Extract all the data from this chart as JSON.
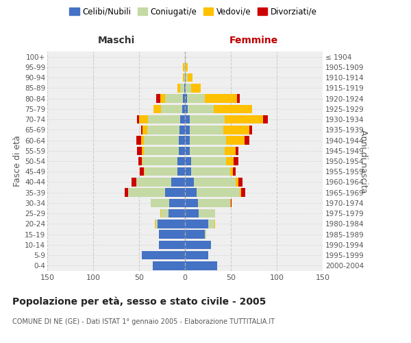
{
  "age_groups": [
    "100+",
    "95-99",
    "90-94",
    "85-89",
    "80-84",
    "75-79",
    "70-74",
    "65-69",
    "60-64",
    "55-59",
    "50-54",
    "45-49",
    "40-44",
    "35-39",
    "30-34",
    "25-29",
    "20-24",
    "15-19",
    "10-14",
    "5-9",
    "0-4"
  ],
  "birth_years": [
    "≤ 1904",
    "1905-1909",
    "1910-1914",
    "1915-1919",
    "1920-1924",
    "1925-1929",
    "1930-1934",
    "1935-1939",
    "1940-1944",
    "1945-1949",
    "1950-1954",
    "1955-1959",
    "1960-1964",
    "1965-1969",
    "1970-1974",
    "1975-1979",
    "1980-1984",
    "1985-1989",
    "1990-1994",
    "1995-1999",
    "2000-2004"
  ],
  "colors": {
    "celibi": "#4472c4",
    "coniugati": "#c5d9a4",
    "vedovi": "#ffc000",
    "divorziati": "#cc0000"
  },
  "males": {
    "celibi": [
      0,
      0,
      0,
      1,
      2,
      3,
      5,
      6,
      7,
      7,
      8,
      8,
      15,
      22,
      17,
      18,
      30,
      28,
      28,
      47,
      35
    ],
    "coniugati": [
      0,
      1,
      1,
      4,
      20,
      23,
      35,
      35,
      38,
      38,
      38,
      36,
      38,
      40,
      20,
      8,
      2,
      0,
      0,
      0,
      0
    ],
    "vedovi": [
      0,
      1,
      1,
      3,
      5,
      8,
      10,
      5,
      3,
      2,
      1,
      1,
      0,
      0,
      0,
      1,
      1,
      0,
      0,
      0,
      0
    ],
    "divorziati": [
      0,
      0,
      0,
      0,
      4,
      0,
      2,
      2,
      5,
      5,
      4,
      4,
      5,
      4,
      0,
      0,
      0,
      0,
      0,
      0,
      0
    ]
  },
  "females": {
    "celibi": [
      0,
      0,
      1,
      1,
      2,
      3,
      5,
      5,
      5,
      5,
      7,
      7,
      10,
      13,
      14,
      15,
      25,
      22,
      28,
      25,
      35
    ],
    "coniugati": [
      0,
      1,
      2,
      6,
      20,
      28,
      38,
      37,
      40,
      38,
      38,
      42,
      45,
      47,
      35,
      18,
      7,
      1,
      0,
      0,
      0
    ],
    "vedovi": [
      0,
      2,
      5,
      10,
      35,
      42,
      42,
      28,
      20,
      12,
      8,
      3,
      3,
      1,
      1,
      0,
      1,
      0,
      0,
      0,
      0
    ],
    "divorziati": [
      0,
      0,
      0,
      0,
      3,
      0,
      5,
      3,
      5,
      3,
      5,
      3,
      5,
      5,
      1,
      0,
      0,
      0,
      0,
      0,
      0
    ]
  },
  "xlim": 150,
  "title": "Popolazione per età, sesso e stato civile - 2005",
  "subtitle": "COMUNE DI NE (GE) - Dati ISTAT 1° gennaio 2005 - Elaborazione TUTTITALIA.IT",
  "ylabel_left": "Fasce di età",
  "ylabel_right": "Anni di nascita",
  "xlabel_left": "Maschi",
  "xlabel_right": "Femmine",
  "bg_color": "#efefef",
  "grid_color": "#cccccc"
}
